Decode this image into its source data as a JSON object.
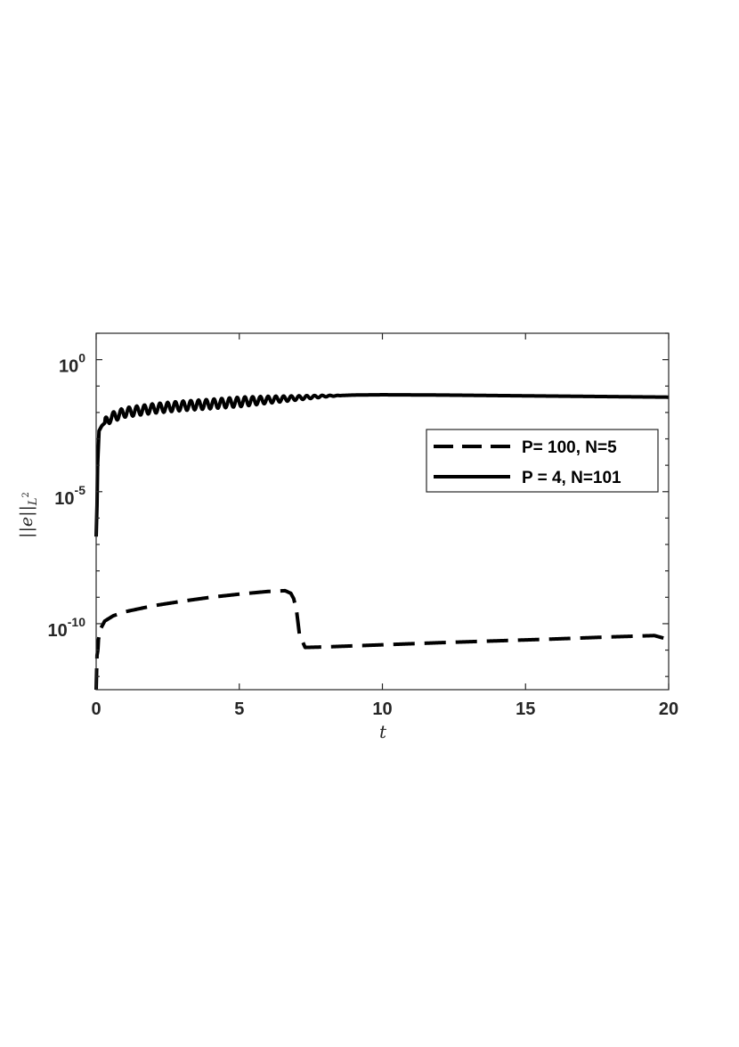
{
  "chart_data": {
    "type": "line",
    "xlabel": "t",
    "ylabel": "||e||_{L^2}",
    "ylabel_parts": {
      "norm": "||e||",
      "sub": "L",
      "sup": "2"
    },
    "xlim": [
      0,
      20
    ],
    "ylim_log10": [
      -12.5,
      1
    ],
    "y_scale": "log",
    "grid": false,
    "legend_position": "right",
    "x_ticks": [
      {
        "value": 0,
        "label": "0"
      },
      {
        "value": 5,
        "label": "5"
      },
      {
        "value": 10,
        "label": "10"
      },
      {
        "value": 15,
        "label": "15"
      },
      {
        "value": 20,
        "label": "20"
      }
    ],
    "y_ticks": [
      {
        "log10": 0,
        "base": "10",
        "exp": "0"
      },
      {
        "log10": -5,
        "base": "10",
        "exp": "-5"
      },
      {
        "log10": -10,
        "base": "10",
        "exp": "-10"
      }
    ],
    "series": [
      {
        "name": "P= 100, N=5",
        "style": "dashed",
        "color": "#000000",
        "points_log10": [
          [
            0.0,
            -12.5
          ],
          [
            0.03,
            -11.2
          ],
          [
            0.06,
            -11.0
          ],
          [
            0.08,
            -10.6
          ],
          [
            0.15,
            -10.2
          ],
          [
            0.3,
            -9.9
          ],
          [
            0.6,
            -9.7
          ],
          [
            1.0,
            -9.55
          ],
          [
            2.0,
            -9.32
          ],
          [
            3.0,
            -9.15
          ],
          [
            4.0,
            -9.0
          ],
          [
            5.0,
            -8.88
          ],
          [
            6.0,
            -8.78
          ],
          [
            6.6,
            -8.75
          ],
          [
            6.8,
            -8.85
          ],
          [
            6.9,
            -9.05
          ],
          [
            7.0,
            -9.5
          ],
          [
            7.1,
            -10.4
          ],
          [
            7.3,
            -10.9
          ],
          [
            8.0,
            -10.88
          ],
          [
            10.0,
            -10.8
          ],
          [
            12.0,
            -10.72
          ],
          [
            14.0,
            -10.65
          ],
          [
            16.0,
            -10.58
          ],
          [
            18.0,
            -10.5
          ],
          [
            19.5,
            -10.45
          ],
          [
            20.0,
            -10.6
          ]
        ]
      },
      {
        "name": "P = 4, N=101",
        "style": "solid",
        "color": "#000000",
        "points_log10": [
          [
            0.0,
            -6.7
          ],
          [
            0.03,
            -5.5
          ],
          [
            0.05,
            -4.0
          ],
          [
            0.1,
            -2.7
          ],
          [
            0.2,
            -2.5
          ],
          [
            0.5,
            -2.2
          ],
          [
            1.0,
            -2.0
          ],
          [
            2.0,
            -1.85
          ],
          [
            3.0,
            -1.75
          ],
          [
            4.0,
            -1.68
          ],
          [
            5.0,
            -1.6
          ],
          [
            6.0,
            -1.52
          ],
          [
            7.0,
            -1.45
          ],
          [
            8.0,
            -1.38
          ],
          [
            9.0,
            -1.34
          ],
          [
            10.0,
            -1.33
          ],
          [
            12.0,
            -1.34
          ],
          [
            14.0,
            -1.36
          ],
          [
            16.0,
            -1.38
          ],
          [
            18.0,
            -1.4
          ],
          [
            20.0,
            -1.42
          ]
        ]
      }
    ]
  }
}
